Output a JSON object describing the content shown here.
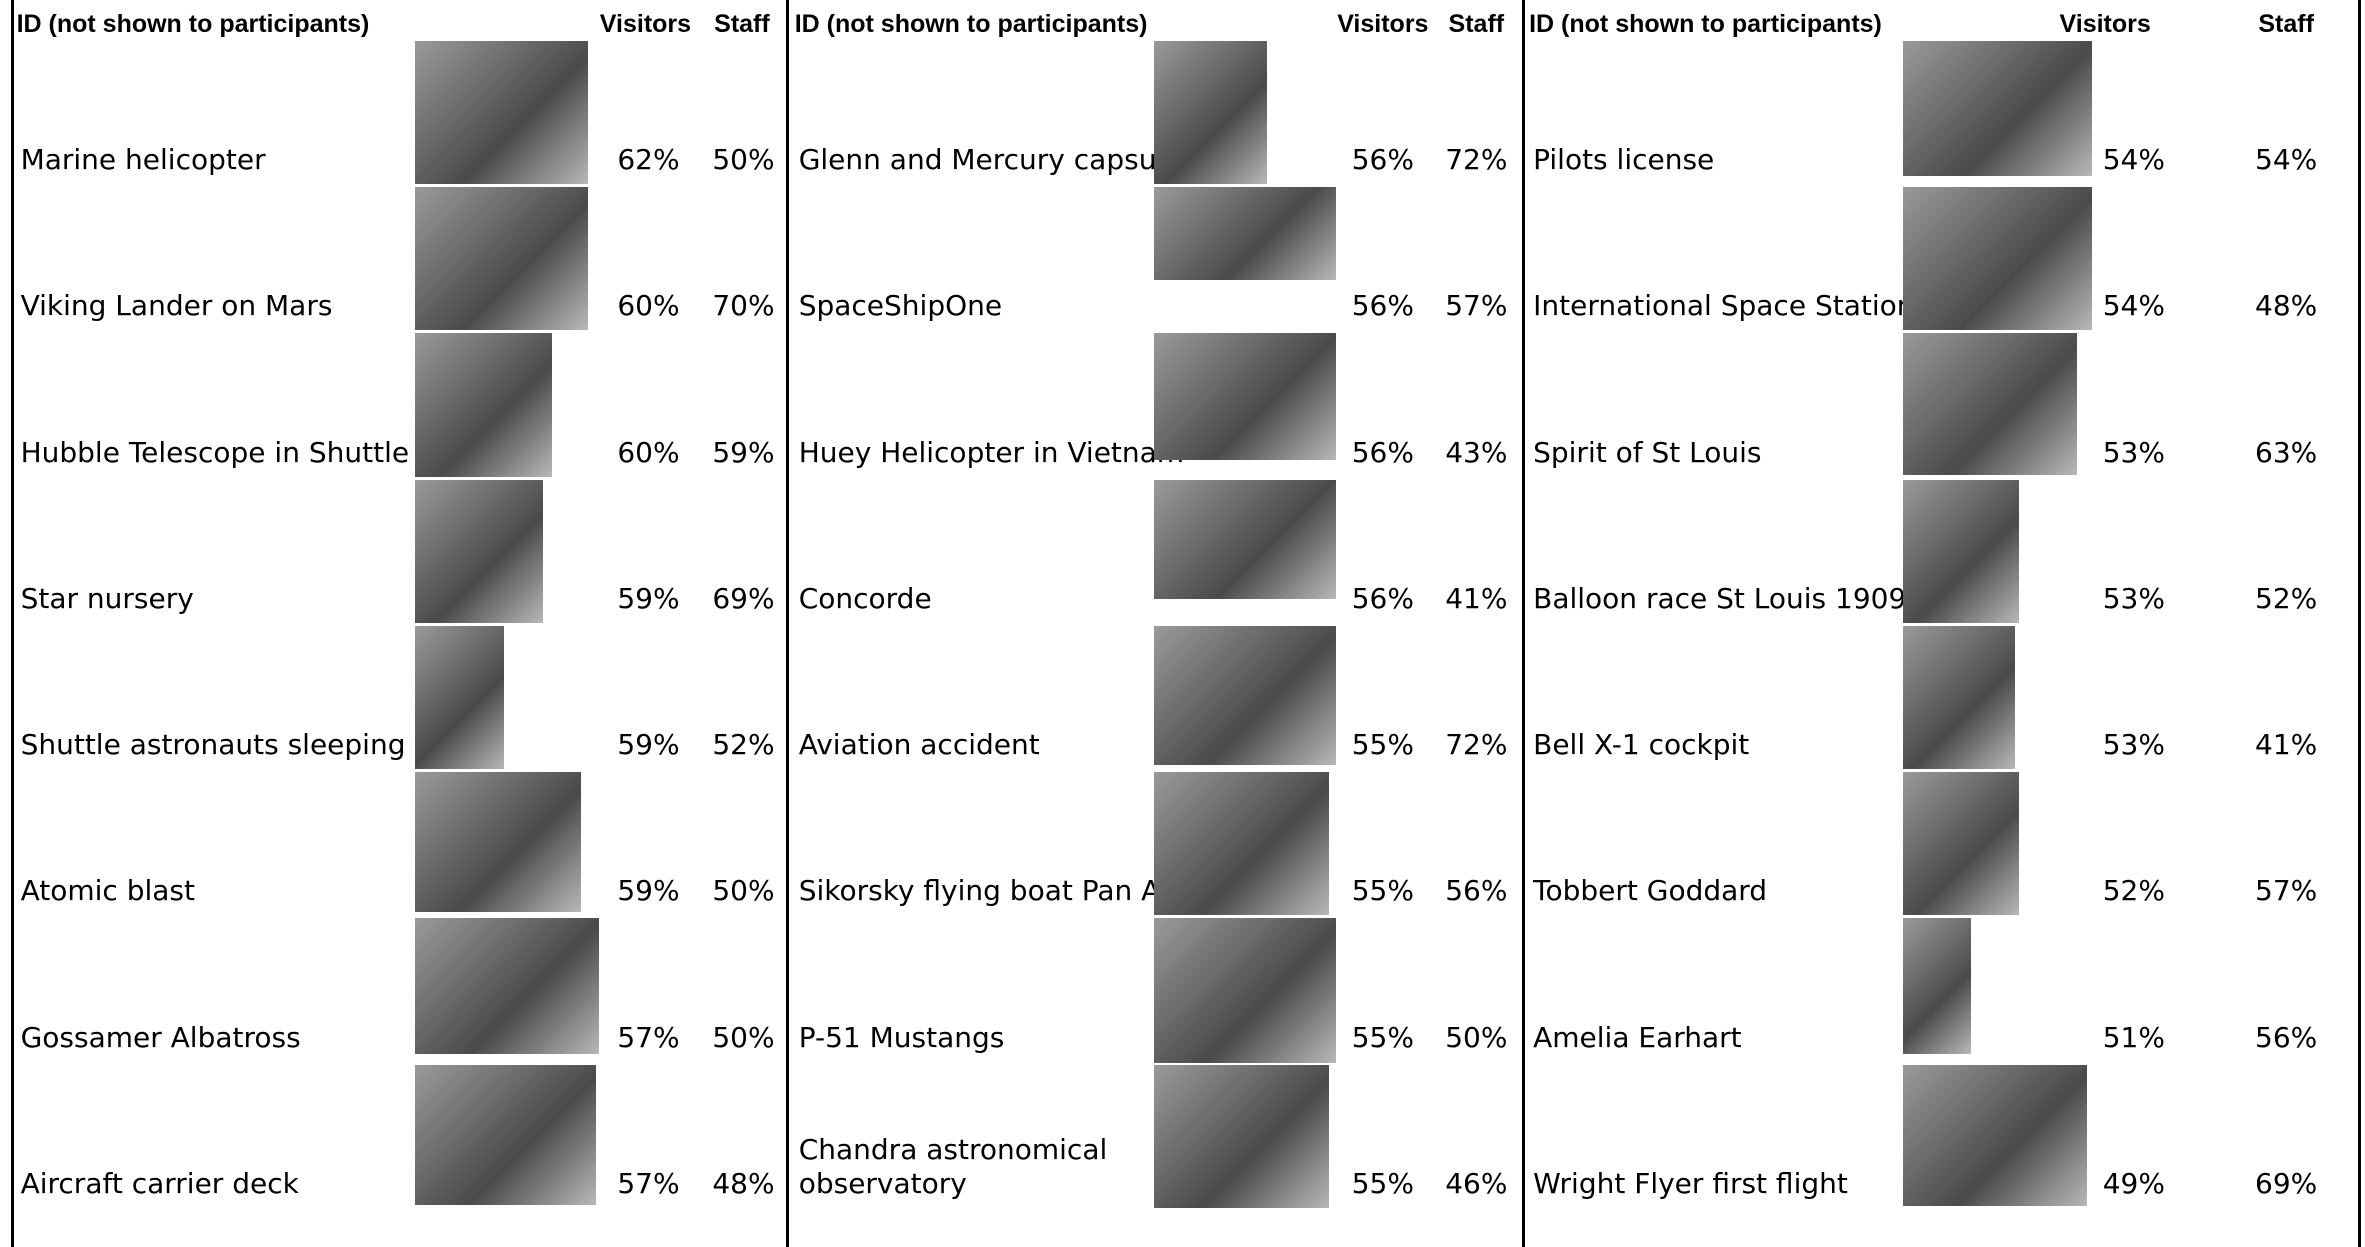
{
  "groups": [
    {
      "headers": {
        "id": "ID (not shown to participants)",
        "visitors": "Visitors",
        "staff": "Staff"
      },
      "rows": [
        [
          "Marine helicopter",
          "62%",
          "50%"
        ],
        [
          "Viking Lander on Mars",
          "60%",
          "70%"
        ],
        [
          "Hubble Telescope in Shuttle",
          "60%",
          "59%"
        ],
        [
          "Star nursery",
          "59%",
          "69%"
        ],
        [
          "Shuttle astronauts sleeping",
          "59%",
          "52%"
        ],
        [
          "Atomic blast",
          "59%",
          "50%"
        ],
        [
          "Gossamer Albatross",
          "57%",
          "50%"
        ],
        [
          "Aircraft carrier deck",
          "57%",
          "48%"
        ]
      ]
    },
    {
      "headers": {
        "id": "ID (not shown to participants)",
        "visitors": "Visitors",
        "staff": "Staff"
      },
      "rows": [
        [
          "Glenn and Mercury capsule",
          "56%",
          "72%"
        ],
        [
          "SpaceShipOne",
          "56%",
          "57%"
        ],
        [
          "Huey Helicopter in Vietnam",
          "56%",
          "43%"
        ],
        [
          "Concorde",
          "56%",
          "41%"
        ],
        [
          "Aviation accident",
          "55%",
          "72%"
        ],
        [
          "Sikorsky flying boat Pan Am",
          "55%",
          "56%"
        ],
        [
          "P-51 Mustangs",
          "55%",
          "50%"
        ],
        [
          "Chandra astronomical observatory",
          "55%",
          "46%"
        ]
      ]
    },
    {
      "headers": {
        "id": "ID (not shown to participants)",
        "visitors": "Visitors",
        "staff": "Staff"
      },
      "rows": [
        [
          "Pilots license",
          "54%",
          "54%"
        ],
        [
          "International Space Station",
          "54%",
          "48%"
        ],
        [
          "Spirit of St Louis",
          "53%",
          "63%"
        ],
        [
          "Balloon race St Louis 1909",
          "53%",
          "52%"
        ],
        [
          "Bell X-1 cockpit",
          "53%",
          "41%"
        ],
        [
          "Tobbert Goddard",
          "52%",
          "57%"
        ],
        [
          "Amelia Earhart",
          "51%",
          "56%"
        ],
        [
          "Wright Flyer first flight",
          "49%",
          "69%"
        ]
      ]
    }
  ]
}
